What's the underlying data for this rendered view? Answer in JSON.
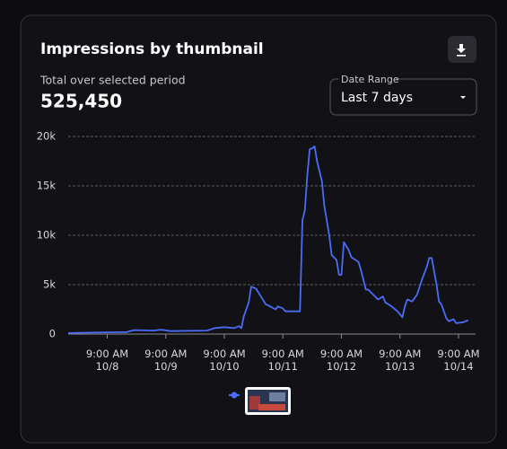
{
  "header": {
    "title": "Impressions by thumbnail",
    "summary_label": "Total over selected period",
    "summary_value": "525,450"
  },
  "controls": {
    "date_range_label": "Date Range",
    "date_range_value": "Last 7 days"
  },
  "chart_data": {
    "type": "line",
    "x": [
      -7,
      2,
      17,
      20,
      28,
      31,
      35,
      50,
      53,
      57,
      61,
      63,
      64,
      65,
      67,
      68,
      70,
      72,
      74,
      75,
      78,
      79,
      81,
      82,
      85,
      88,
      89,
      90,
      91,
      92,
      93,
      94,
      95,
      97,
      98,
      100,
      101,
      103,
      104,
      105,
      106,
      108,
      109,
      112,
      113,
      115,
      116,
      118,
      120,
      122,
      123,
      125,
      127,
      128,
      130,
      131,
      132,
      134,
      136,
      138,
      140,
      141,
      142,
      144,
      145,
      146,
      148,
      149,
      151,
      152,
      155,
      157
    ],
    "series": [
      {
        "color": "#4a6cf7",
        "values": [
          100,
          150,
          200,
          400,
          350,
          450,
          300,
          350,
          600,
          700,
          600,
          800,
          600,
          1800,
          3200,
          4800,
          4600,
          3800,
          3000,
          2900,
          2500,
          2800,
          2600,
          2300,
          2300,
          2300,
          11500,
          12500,
          16000,
          18700,
          18800,
          19000,
          17500,
          15500,
          13000,
          10000,
          8000,
          7500,
          6000,
          6000,
          9300,
          8500,
          7800,
          7300,
          6500,
          4500,
          4500,
          4000,
          3500,
          3800,
          3200,
          2900,
          2500,
          2300,
          1700,
          2800,
          3500,
          3300,
          4000,
          5500,
          6800,
          7700,
          7700,
          5000,
          3300,
          3000,
          1600,
          1300,
          1500,
          1100,
          1200,
          1400
        ]
      }
    ],
    "xlim": [
      -7,
      160
    ],
    "xticks": [
      {
        "value": 9,
        "label": "9:00 AM\n10/8"
      },
      {
        "value": 33,
        "label": "9:00 AM\n10/9"
      },
      {
        "value": 57,
        "label": "9:00 AM\n10/10"
      },
      {
        "value": 81,
        "label": "9:00 AM\n10/11"
      },
      {
        "value": 105,
        "label": "9:00 AM\n10/12"
      },
      {
        "value": 129,
        "label": "9:00 AM\n10/13"
      },
      {
        "value": 153,
        "label": "9:00 AM\n10/14"
      }
    ],
    "ylim": [
      0,
      20000
    ],
    "yticks": [
      0,
      {
        "value": 5000,
        "label": "5k"
      },
      {
        "value": 10000,
        "label": "10k"
      },
      {
        "value": 15000,
        "label": "15k"
      },
      {
        "value": 20000,
        "label": "20k"
      }
    ],
    "grid": true
  }
}
